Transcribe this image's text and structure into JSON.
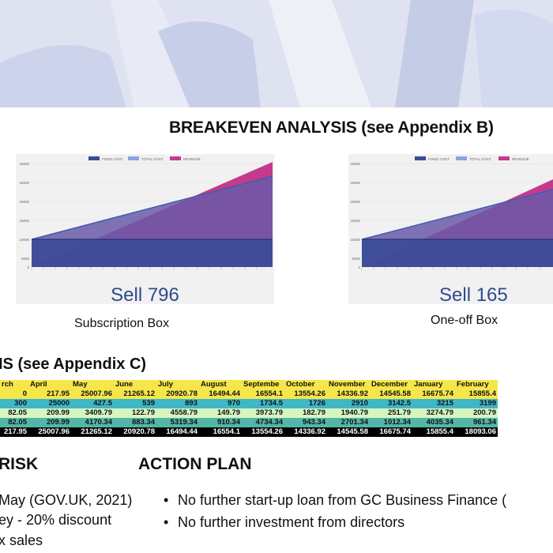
{
  "heading": "BREAKEVEN ANALYSIS (see Appendix B)",
  "charts": [
    {
      "legend": [
        "FIXED COST",
        "TOTAL COST",
        "REVENUE"
      ],
      "sell_label": "Sell 796",
      "caption": "Subscription Box"
    },
    {
      "legend": [
        "FIXED COST",
        "TOTAL COST",
        "REVENUE"
      ],
      "sell_label": "Sell 165",
      "caption": "One-off Box"
    }
  ],
  "chart_data": [
    {
      "type": "area",
      "y_ticks": [
        "30000",
        "25000",
        "20000",
        "15000",
        "10000",
        "5000",
        "0"
      ],
      "ylim": [
        0,
        30000
      ],
      "series": [
        {
          "name": "FIXED COST",
          "color": "#3b4a96"
        },
        {
          "name": "TOTAL COST",
          "color": "#8aa3e0"
        },
        {
          "name": "REVENUE",
          "color": "#c43a8c"
        }
      ]
    },
    {
      "type": "area",
      "y_ticks": [
        "30000",
        "25000",
        "20000",
        "15000",
        "10000",
        "5000",
        "0"
      ],
      "ylim": [
        0,
        30000
      ],
      "series": [
        {
          "name": "FIXED COST",
          "color": "#3b4a96"
        },
        {
          "name": "TOTAL COST",
          "color": "#8aa3e0"
        },
        {
          "name": "REVENUE",
          "color": "#c43a8c"
        }
      ]
    }
  ],
  "cashflow_heading": "IS (see Appendix C)",
  "cashflow": {
    "header": [
      "rch",
      "April",
      "May",
      "June",
      "July",
      "August",
      "Septembe",
      "October",
      "November",
      "December",
      "January",
      "February"
    ],
    "rows": [
      {
        "style": "row-yellow",
        "cells": [
          "0",
          "217.95",
          "25007.96",
          "21265.12",
          "20920.78",
          "16494.44",
          "16554.1",
          "13554.26",
          "14336.92",
          "14545.58",
          "16675.74",
          "15855.4"
        ]
      },
      {
        "style": "row-cyan",
        "cells": [
          "300",
          "25000",
          "427.5",
          "539",
          "893",
          "970",
          "1734.5",
          "1726",
          "2910",
          "3142.5",
          "3215",
          "3199"
        ]
      },
      {
        "style": "row-lightgreen",
        "cells": [
          "82.05",
          "209.99",
          "3409.79",
          "122.79",
          "4558.79",
          "149.79",
          "3973.79",
          "182.79",
          "1940.79",
          "251.79",
          "3274.79",
          "200.79"
        ]
      },
      {
        "style": "row-teal",
        "cells": [
          "82.05",
          "209.99",
          "4170.34",
          "883.34",
          "5319.34",
          "910.34",
          "4734.34",
          "943.34",
          "2701.34",
          "1012.34",
          "4035.34",
          "961.34"
        ]
      },
      {
        "style": "row-black",
        "cells": [
          "217.95",
          "25007.96",
          "21265.12",
          "20920.78",
          "16494.44",
          "16554.1",
          "13554.26",
          "14336.92",
          "14545.58",
          "16675.74",
          "15855.4",
          "18093.06"
        ]
      }
    ]
  },
  "risk": {
    "heading": "RISK",
    "lines": [
      "May (GOV.UK, 2021)",
      "ey - 20% discount",
      "x sales"
    ]
  },
  "action_plan": {
    "heading": "ACTION PLAN",
    "items": [
      "No further start-up loan from GC Business Finance  (",
      "No further investment from directors"
    ]
  }
}
